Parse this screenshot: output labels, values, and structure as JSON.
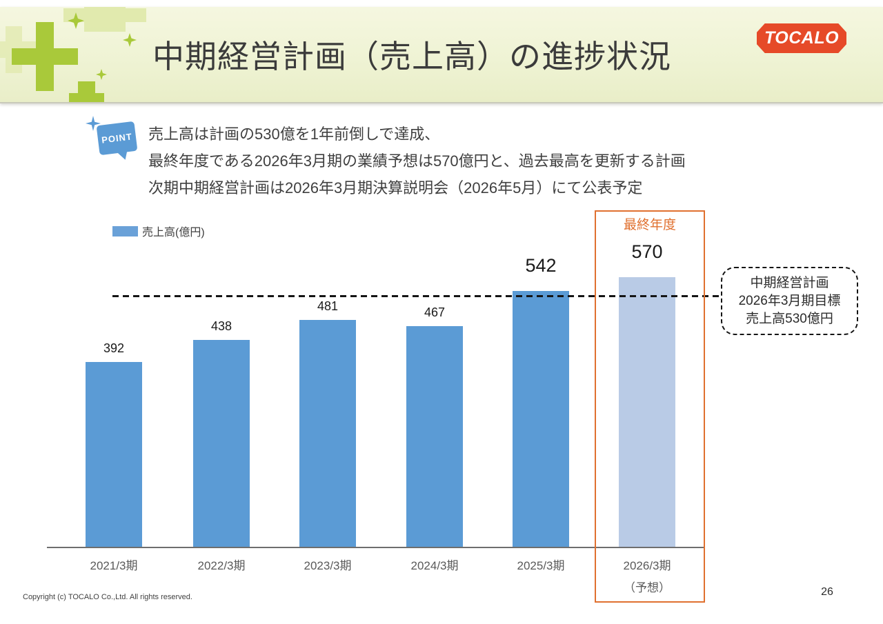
{
  "header": {
    "title": "中期経営計画（売上高）の進捗状況",
    "logo_text": "TOCALO"
  },
  "point": {
    "badge": "POINT",
    "lines": [
      "売上高は計画の530億を1年前倒しで達成、",
      "最終年度である2026年3月期の業績予想は570億円と、過去最高を更新する計画",
      "次期中期経営計画は2026年3月期決算説明会（2026年5月）にて公表予定"
    ]
  },
  "chart_data": {
    "type": "bar",
    "legend": "売上高(億円)",
    "categories": [
      "2021/3期",
      "2022/3期",
      "2023/3期",
      "2024/3期",
      "2025/3期",
      "2026/3期"
    ],
    "category_notes": [
      "",
      "",
      "",
      "",
      "",
      "（予想）"
    ],
    "values": [
      392,
      438,
      481,
      467,
      542,
      570
    ],
    "emphasis_indexes": [
      4,
      5
    ],
    "highlight_index": 5,
    "bar_color": "#5b9bd5",
    "highlight_bar_color": "#b9cbe6",
    "accent_color": "#e0702f",
    "ylim": [
      0,
      600
    ],
    "grid": false,
    "legend_position": "top-left",
    "target_line": {
      "value": 530,
      "style": "dashed"
    },
    "final_year_label": "最終年度",
    "callout_lines": [
      "中期経営計画",
      "2026年3月期目標",
      "売上高530億円"
    ]
  },
  "footer": {
    "copyright": "Copyright (c) TOCALO Co.,Ltd. All rights reserved.",
    "page_number": "26"
  }
}
